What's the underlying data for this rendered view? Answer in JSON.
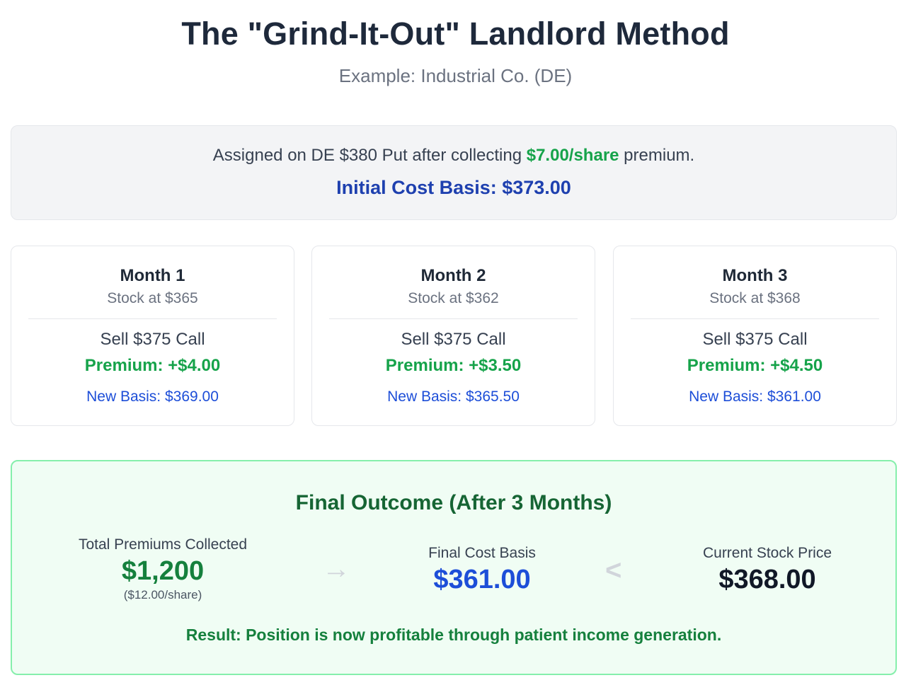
{
  "header": {
    "title": "The \"Grind-It-Out\" Landlord Method",
    "subtitle": "Example: Industrial Co. (DE)"
  },
  "assignment": {
    "prefix": "Assigned on DE $380 Put after collecting ",
    "premium": "$7.00/share",
    "suffix": " premium.",
    "initial_basis": "Initial Cost Basis: $373.00"
  },
  "months": [
    {
      "title": "Month 1",
      "stock": "Stock at $365",
      "action": "Sell $375 Call",
      "premium": "Premium: +$4.00",
      "new_basis": "New Basis: $369.00"
    },
    {
      "title": "Month 2",
      "stock": "Stock at $362",
      "action": "Sell $375 Call",
      "premium": "Premium: +$3.50",
      "new_basis": "New Basis: $365.50"
    },
    {
      "title": "Month 3",
      "stock": "Stock at $368",
      "action": "Sell $375 Call",
      "premium": "Premium: +$4.50",
      "new_basis": "New Basis: $361.00"
    }
  ],
  "outcome": {
    "title": "Final Outcome (After 3 Months)",
    "total_premiums_label": "Total Premiums Collected",
    "total_premiums_value": "$1,200",
    "total_premiums_per_share": "($12.00/share)",
    "final_basis_label": "Final Cost Basis",
    "final_basis_value": "$361.00",
    "current_price_label": "Current Stock Price",
    "current_price_value": "$368.00",
    "result": "Result: Position is now profitable through patient income generation.",
    "arrow_symbol": "→",
    "less_than_symbol": "<"
  },
  "colors": {
    "title": "#1e293b",
    "green": "#16a34a",
    "dark_green": "#166534",
    "blue": "#1d4ed8",
    "box_gray": "#f3f4f6",
    "outcome_bg": "#f0fdf4",
    "outcome_border": "#86efac"
  }
}
